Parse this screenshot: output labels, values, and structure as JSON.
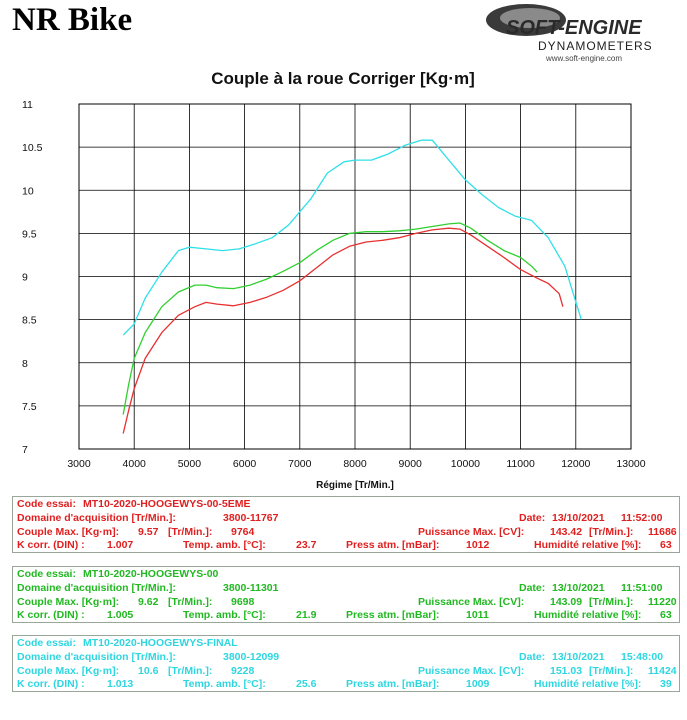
{
  "title": "NR Bike",
  "logo": {
    "line1": "SOFT-ENGINE",
    "line2": "DYNAMOMETERS",
    "url": "www.soft-engine.com"
  },
  "chart_data": {
    "type": "line",
    "title": "Couple à la roue Corriger [Kg·m]",
    "xlabel": "Régime [Tr/Min.]",
    "ylabel": "",
    "xlim": [
      3000,
      13000
    ],
    "ylim": [
      7,
      11
    ],
    "xticks": [
      3000,
      4000,
      5000,
      6000,
      7000,
      8000,
      9000,
      10000,
      11000,
      12000,
      13000
    ],
    "yticks": [
      7,
      7.5,
      8,
      8.5,
      9,
      9.5,
      10,
      10.5,
      11
    ],
    "grid": true,
    "series": [
      {
        "color": "#e83030",
        "x": [
          3800,
          3900,
          4000,
          4200,
          4500,
          4800,
          5100,
          5300,
          5500,
          5800,
          6100,
          6400,
          6700,
          7000,
          7300,
          7600,
          7900,
          8200,
          8500,
          8800,
          9100,
          9400,
          9700,
          9900,
          10100,
          10400,
          10700,
          11000,
          11300,
          11500,
          11700,
          11767
        ],
        "y": [
          7.18,
          7.45,
          7.7,
          8.05,
          8.35,
          8.55,
          8.65,
          8.7,
          8.68,
          8.66,
          8.7,
          8.76,
          8.84,
          8.95,
          9.1,
          9.25,
          9.35,
          9.4,
          9.42,
          9.45,
          9.5,
          9.54,
          9.56,
          9.55,
          9.48,
          9.35,
          9.22,
          9.08,
          8.98,
          8.92,
          8.8,
          8.65
        ]
      },
      {
        "color": "#30d030",
        "x": [
          3800,
          3900,
          4000,
          4200,
          4500,
          4800,
          5100,
          5300,
          5500,
          5800,
          6100,
          6400,
          6700,
          7000,
          7300,
          7600,
          7900,
          8200,
          8500,
          8800,
          9100,
          9400,
          9700,
          9900,
          10100,
          10400,
          10700,
          11000,
          11200,
          11301
        ],
        "y": [
          7.4,
          7.75,
          8.05,
          8.35,
          8.65,
          8.82,
          8.9,
          8.9,
          8.87,
          8.86,
          8.9,
          8.97,
          9.06,
          9.16,
          9.3,
          9.42,
          9.5,
          9.52,
          9.52,
          9.53,
          9.55,
          9.58,
          9.61,
          9.62,
          9.56,
          9.42,
          9.3,
          9.22,
          9.12,
          9.05
        ]
      },
      {
        "color": "#30e0e8",
        "x": [
          3800,
          4000,
          4200,
          4500,
          4800,
          5000,
          5300,
          5600,
          5900,
          6200,
          6500,
          6800,
          7000,
          7200,
          7500,
          7800,
          8000,
          8300,
          8600,
          8900,
          9200,
          9400,
          9700,
          10000,
          10300,
          10600,
          10900,
          11200,
          11500,
          11800,
          12099
        ],
        "y": [
          8.32,
          8.45,
          8.75,
          9.05,
          9.3,
          9.34,
          9.32,
          9.3,
          9.32,
          9.38,
          9.45,
          9.6,
          9.75,
          9.9,
          10.2,
          10.33,
          10.35,
          10.35,
          10.42,
          10.52,
          10.58,
          10.58,
          10.35,
          10.12,
          9.95,
          9.8,
          9.7,
          9.65,
          9.45,
          9.12,
          8.5
        ]
      }
    ]
  },
  "panels": [
    {
      "color": "#e02020",
      "code_label": "Code essai:",
      "code": "MT10-2020-HOOGEWYS-00-5EME",
      "domain_label": "Domaine d'acquisition [Tr/Min.]:",
      "domain": "3800-11767",
      "date_label": "Date:",
      "date": "13/10/2021",
      "time": "11:52:00",
      "couple_label": "Couple Max. [Kg·m]:",
      "couple": "9.57",
      "couple_rpm_label": "[Tr/Min.]:",
      "couple_rpm": "9764",
      "puissance_label": "Puissance Max. [CV]:",
      "puissance": "143.42",
      "puissance_rpm_label": "[Tr/Min.]:",
      "puissance_rpm": "11686",
      "kcorr_label": "K corr. (DIN) :",
      "kcorr": "1.007",
      "temp_label": "Temp. amb. [°C]:",
      "temp": "23.7",
      "press_label": "Press atm. [mBar]:",
      "press": "1012",
      "hum_label": "Humidité relative [%]:",
      "hum": "63"
    },
    {
      "color": "#22b822",
      "code_label": "Code essai:",
      "code": "MT10-2020-HOOGEWYS-00",
      "domain_label": "Domaine d'acquisition [Tr/Min.]:",
      "domain": "3800-11301",
      "date_label": "Date:",
      "date": "13/10/2021",
      "time": "11:51:00",
      "couple_label": "Couple Max. [Kg·m]:",
      "couple": "9.62",
      "couple_rpm_label": "[Tr/Min.]:",
      "couple_rpm": "9698",
      "puissance_label": "Puissance Max. [CV]:",
      "puissance": "143.09",
      "puissance_rpm_label": "[Tr/Min.]:",
      "puissance_rpm": "11220",
      "kcorr_label": "K corr. (DIN) :",
      "kcorr": "1.005",
      "temp_label": "Temp. amb. [°C]:",
      "temp": "21.9",
      "press_label": "Press atm. [mBar]:",
      "press": "1011",
      "hum_label": "Humidité relative [%]:",
      "hum": "63"
    },
    {
      "color": "#2ed6e0",
      "code_label": "Code essai:",
      "code": "MT10-2020-HOOGEWYS-FINAL",
      "domain_label": "Domaine d'acquisition [Tr/Min.]:",
      "domain": "3800-12099",
      "date_label": "Date:",
      "date": "13/10/2021",
      "time": "15:48:00",
      "couple_label": "Couple Max. [Kg·m]:",
      "couple": "10.6",
      "couple_rpm_label": "[Tr/Min.]:",
      "couple_rpm": "9228",
      "puissance_label": "Puissance Max. [CV]:",
      "puissance": "151.03",
      "puissance_rpm_label": "[Tr/Min.]:",
      "puissance_rpm": "11424",
      "kcorr_label": "K corr. (DIN) :",
      "kcorr": "1.013",
      "temp_label": "Temp. amb. [°C]:",
      "temp": "25.6",
      "press_label": "Press atm. [mBar]:",
      "press": "1009",
      "hum_label": "Humidité relative [%]:",
      "hum": "39"
    }
  ]
}
